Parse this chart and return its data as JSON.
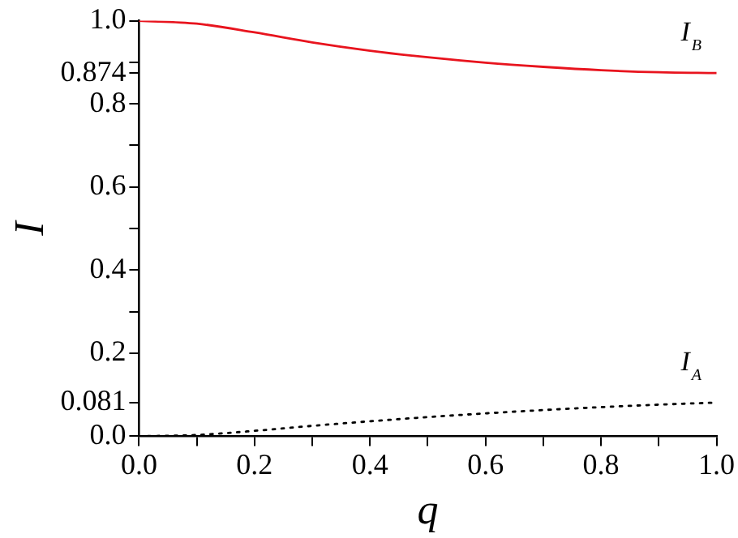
{
  "chart_data": {
    "type": "line",
    "xlabel": "q",
    "ylabel": "I",
    "x": [
      0,
      0.1,
      0.2,
      0.3,
      0.4,
      0.5,
      0.6,
      0.7,
      0.8,
      0.9,
      1.0
    ],
    "series": [
      {
        "name": "I$_{B}$",
        "color": "#e8141e",
        "line_style": "solid",
        "values": [
          1.0,
          0.993,
          0.972,
          0.948,
          0.928,
          0.912,
          0.899,
          0.889,
          0.881,
          0.876,
          0.874
        ]
      },
      {
        "name": "I$_{A}$",
        "color": "#000000",
        "line_style": "dotted",
        "values": [
          0.0,
          0.003,
          0.013,
          0.025,
          0.036,
          0.046,
          0.055,
          0.063,
          0.07,
          0.076,
          0.081
        ]
      }
    ],
    "xlim": [
      0,
      1
    ],
    "ylim": [
      0,
      1
    ],
    "xticks": [
      {
        "value": 0,
        "label": "0.0"
      },
      {
        "value": 0.1,
        "label": null
      },
      0.2,
      {
        "value": 0.3,
        "label": null
      },
      0.4,
      {
        "value": 0.5,
        "label": null
      },
      0.6,
      {
        "value": 0.7,
        "label": null
      },
      0.8,
      {
        "value": 0.9,
        "label": null
      },
      {
        "value": 1,
        "label": "1.0"
      }
    ],
    "yticks": [
      {
        "value": 0,
        "label": "0.0"
      },
      0.081,
      0.2,
      {
        "value": 0.3,
        "label": null
      },
      0.4,
      {
        "value": 0.5,
        "label": null
      },
      0.6,
      {
        "value": 0.7,
        "label": null
      },
      0.8,
      0.874,
      {
        "value": 0.9,
        "label": null
      },
      {
        "value": 1,
        "label": "1.0"
      }
    ],
    "grid": false,
    "legend": false,
    "marker": "none"
  }
}
